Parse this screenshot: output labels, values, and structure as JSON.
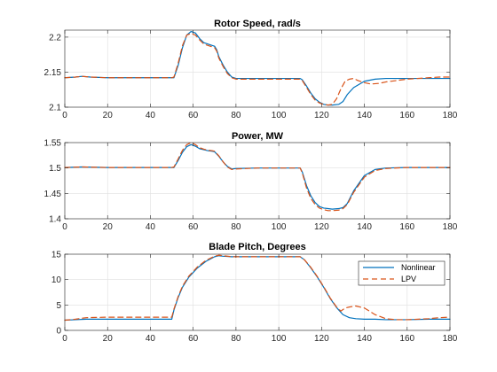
{
  "colors": {
    "nonlinear": "#0072BD",
    "lpv": "#D95319",
    "grid": "#dfdfdf",
    "axes": "#262626"
  },
  "chart_data": [
    {
      "type": "line",
      "title": "Rotor Speed, rad/s",
      "xlim": [
        0,
        180
      ],
      "ylim": [
        2.1,
        2.21
      ],
      "xticks": [
        0,
        20,
        40,
        60,
        80,
        100,
        120,
        140,
        160,
        180
      ],
      "yticks": [
        2.1,
        2.15,
        2.2
      ],
      "ytick_labels": [
        "2.1",
        "2.15",
        "2.2"
      ],
      "grid": true,
      "series": [
        {
          "name": "Nonlinear",
          "style": "solid",
          "x": [
            0,
            5,
            8,
            12,
            20,
            30,
            40,
            50,
            51,
            53,
            55,
            57,
            59,
            61,
            63,
            65,
            67,
            69,
            70,
            71,
            72,
            74,
            76,
            78,
            80,
            90,
            100,
            110,
            111,
            113,
            115,
            117,
            119,
            121,
            123,
            125,
            128,
            130,
            132,
            135,
            140,
            145,
            150,
            160,
            170,
            180
          ],
          "y": [
            2.142,
            2.143,
            2.144,
            2.143,
            2.142,
            2.142,
            2.142,
            2.142,
            2.142,
            2.16,
            2.185,
            2.203,
            2.208,
            2.206,
            2.198,
            2.192,
            2.19,
            2.188,
            2.187,
            2.182,
            2.172,
            2.16,
            2.15,
            2.143,
            2.141,
            2.141,
            2.141,
            2.141,
            2.139,
            2.13,
            2.12,
            2.112,
            2.107,
            2.104,
            2.103,
            2.103,
            2.104,
            2.108,
            2.118,
            2.128,
            2.137,
            2.14,
            2.141,
            2.141,
            2.141,
            2.141
          ]
        },
        {
          "name": "LPV",
          "style": "dashed",
          "x": [
            0,
            5,
            8,
            12,
            20,
            30,
            40,
            50,
            51,
            53,
            55,
            57,
            59,
            61,
            63,
            65,
            67,
            69,
            70,
            71,
            72,
            74,
            76,
            78,
            80,
            90,
            100,
            110,
            111,
            113,
            115,
            117,
            119,
            121,
            123,
            125,
            127,
            129,
            131,
            133,
            135,
            137,
            140,
            143,
            147,
            150,
            155,
            160,
            170,
            175,
            180
          ],
          "y": [
            2.142,
            2.143,
            2.144,
            2.143,
            2.142,
            2.142,
            2.142,
            2.142,
            2.143,
            2.163,
            2.188,
            2.203,
            2.205,
            2.203,
            2.196,
            2.19,
            2.188,
            2.186,
            2.185,
            2.18,
            2.17,
            2.158,
            2.148,
            2.142,
            2.14,
            2.14,
            2.14,
            2.14,
            2.138,
            2.128,
            2.118,
            2.11,
            2.106,
            2.104,
            2.103,
            2.104,
            2.112,
            2.126,
            2.137,
            2.14,
            2.141,
            2.138,
            2.135,
            2.133,
            2.134,
            2.136,
            2.138,
            2.14,
            2.142,
            2.143,
            2.143
          ]
        }
      ]
    },
    {
      "type": "line",
      "title": "Power, MW",
      "xlim": [
        0,
        180
      ],
      "ylim": [
        1.4,
        1.55
      ],
      "xticks": [
        0,
        20,
        40,
        60,
        80,
        100,
        120,
        140,
        160,
        180
      ],
      "yticks": [
        1.4,
        1.45,
        1.5,
        1.55
      ],
      "ytick_labels": [
        "1.4",
        "1.45",
        "1.5",
        "1.55"
      ],
      "grid": true,
      "series": [
        {
          "name": "Nonlinear",
          "style": "solid",
          "x": [
            0,
            8,
            20,
            30,
            40,
            50,
            51,
            53,
            55,
            57,
            59,
            61,
            63,
            65,
            67,
            69,
            70,
            72,
            74,
            76,
            78,
            80,
            90,
            100,
            110,
            111,
            113,
            115,
            117,
            119,
            121,
            123,
            125,
            128,
            130,
            132,
            135,
            140,
            145,
            150,
            160,
            170,
            180
          ],
          "y": [
            1.501,
            1.502,
            1.501,
            1.501,
            1.501,
            1.501,
            1.501,
            1.515,
            1.531,
            1.542,
            1.546,
            1.543,
            1.538,
            1.536,
            1.534,
            1.533,
            1.532,
            1.523,
            1.512,
            1.503,
            1.498,
            1.499,
            1.5,
            1.5,
            1.5,
            1.492,
            1.465,
            1.445,
            1.432,
            1.424,
            1.421,
            1.42,
            1.419,
            1.42,
            1.422,
            1.43,
            1.455,
            1.485,
            1.497,
            1.5,
            1.501,
            1.501,
            1.501
          ]
        },
        {
          "name": "LPV",
          "style": "dashed",
          "x": [
            0,
            8,
            20,
            30,
            40,
            50,
            51,
            53,
            55,
            57,
            59,
            61,
            63,
            65,
            67,
            69,
            70,
            72,
            74,
            76,
            78,
            80,
            90,
            100,
            110,
            111,
            113,
            115,
            117,
            119,
            121,
            123,
            125,
            128,
            130,
            132,
            135,
            140,
            145,
            150,
            160,
            170,
            180
          ],
          "y": [
            1.501,
            1.502,
            1.501,
            1.501,
            1.501,
            1.501,
            1.502,
            1.518,
            1.535,
            1.546,
            1.55,
            1.546,
            1.54,
            1.537,
            1.535,
            1.534,
            1.533,
            1.524,
            1.512,
            1.502,
            1.497,
            1.498,
            1.5,
            1.5,
            1.5,
            1.49,
            1.46,
            1.44,
            1.428,
            1.421,
            1.418,
            1.416,
            1.416,
            1.417,
            1.42,
            1.428,
            1.452,
            1.482,
            1.495,
            1.499,
            1.501,
            1.501,
            1.501
          ]
        }
      ]
    },
    {
      "type": "line",
      "title": "Blade Pitch, Degrees",
      "xlim": [
        0,
        180
      ],
      "ylim": [
        0,
        15
      ],
      "xticks": [
        0,
        20,
        40,
        60,
        80,
        100,
        120,
        140,
        160,
        180
      ],
      "yticks": [
        0,
        5,
        10,
        15
      ],
      "ytick_labels": [
        "0",
        "5",
        "10",
        "15"
      ],
      "grid": true,
      "legend": {
        "location": "top-right",
        "entries": [
          "Nonlinear",
          "LPV"
        ]
      },
      "series": [
        {
          "name": "Nonlinear",
          "style": "solid",
          "x": [
            0,
            5,
            10,
            20,
            30,
            40,
            50,
            51,
            53,
            55,
            58,
            62,
            66,
            70,
            72,
            74,
            78,
            80,
            90,
            100,
            110,
            112,
            115,
            118,
            121,
            124,
            127,
            130,
            133,
            136,
            140,
            145,
            150,
            160,
            170,
            180
          ],
          "y": [
            2.0,
            2.1,
            2.2,
            2.2,
            2.2,
            2.2,
            2.2,
            4.0,
            6.5,
            8.5,
            10.5,
            12.3,
            13.6,
            14.5,
            14.7,
            14.6,
            14.5,
            14.5,
            14.5,
            14.5,
            14.5,
            13.9,
            12.3,
            10.5,
            8.5,
            6.3,
            4.5,
            3.1,
            2.5,
            2.3,
            2.2,
            2.2,
            2.1,
            2.1,
            2.2,
            2.2
          ]
        },
        {
          "name": "LPV",
          "style": "dashed",
          "x": [
            0,
            5,
            10,
            20,
            30,
            40,
            50,
            51,
            53,
            55,
            58,
            62,
            66,
            70,
            72,
            74,
            78,
            80,
            90,
            100,
            110,
            112,
            115,
            118,
            121,
            124,
            127,
            129,
            131,
            133,
            136,
            140,
            145,
            150,
            155,
            160,
            170,
            175,
            180
          ],
          "y": [
            2.0,
            2.2,
            2.5,
            2.6,
            2.6,
            2.6,
            2.6,
            4.2,
            6.7,
            8.7,
            10.7,
            12.5,
            13.8,
            14.6,
            14.8,
            14.7,
            14.5,
            14.5,
            14.5,
            14.5,
            14.5,
            13.9,
            12.4,
            10.6,
            8.6,
            6.4,
            4.6,
            3.8,
            4.4,
            4.6,
            4.8,
            4.4,
            3.1,
            2.3,
            2.1,
            2.1,
            2.3,
            2.5,
            2.6
          ]
        }
      ]
    }
  ]
}
